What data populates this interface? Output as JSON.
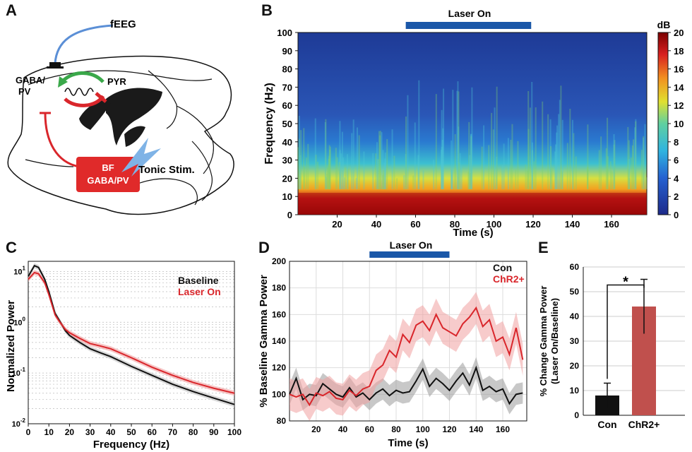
{
  "panels": {
    "A": {
      "label": "A",
      "feeg_label": "fEEG",
      "gaba_label": "GABA/",
      "pv_label": "PV",
      "pyr_label": "PYR",
      "box_line1": "BF",
      "box_line2": "GABA/PV",
      "stim_label": "Tonic Stim."
    },
    "B": {
      "label": "B"
    },
    "C": {
      "label": "C"
    },
    "D": {
      "label": "D"
    },
    "E": {
      "label": "E"
    }
  },
  "colors": {
    "laser_bar": "#1a57a8",
    "red": "#d9262b",
    "black": "#111111",
    "con_bar": "#111111",
    "chr2_bar": "#c0504d",
    "feeg_wire": "#5b8fd6",
    "green_arrow": "#3aa84a"
  },
  "chart_data": [
    {
      "id": "B",
      "type": "heatmap",
      "title": "Laser On",
      "xlabel": "Time (s)",
      "ylabel": "Frequency (Hz)",
      "xlim": [
        0,
        178
      ],
      "ylim": [
        0,
        100
      ],
      "xticks": [
        "20",
        "40",
        "60",
        "80",
        "100",
        "120",
        "140",
        "160"
      ],
      "yticks": [
        "0",
        "10",
        "20",
        "30",
        "40",
        "50",
        "60",
        "70",
        "80",
        "90",
        "100"
      ],
      "laser_on": [
        55,
        119
      ],
      "colorbar_label": "dB",
      "colorbar_ticks": [
        "0",
        "2",
        "4",
        "6",
        "8",
        "10",
        "12",
        "14",
        "16",
        "18",
        "20"
      ],
      "colorbar_range": [
        0,
        20
      ]
    },
    {
      "id": "C",
      "type": "line",
      "xlabel": "Frequency (Hz)",
      "ylabel": "Normalized Power",
      "yscale": "log",
      "xticks": [
        "0",
        "10",
        "20",
        "30",
        "40",
        "50",
        "60",
        "70",
        "80",
        "90",
        "100"
      ],
      "yticks": [
        "10^-2",
        "10^-1",
        "10^0",
        "10^1"
      ],
      "legend": [
        "Baseline",
        "Laser On"
      ],
      "series": [
        {
          "name": "Baseline",
          "x": [
            0,
            3,
            5,
            8,
            10,
            13,
            15,
            18,
            20,
            25,
            30,
            35,
            40,
            50,
            60,
            70,
            80,
            90,
            100
          ],
          "values": [
            8,
            13,
            12,
            7,
            4,
            1.5,
            1.1,
            0.68,
            0.55,
            0.4,
            0.3,
            0.25,
            0.21,
            0.135,
            0.09,
            0.06,
            0.043,
            0.032,
            0.024
          ]
        },
        {
          "name": "Laser On",
          "x": [
            0,
            3,
            5,
            8,
            10,
            13,
            15,
            18,
            20,
            25,
            30,
            35,
            40,
            50,
            60,
            70,
            80,
            90,
            100
          ],
          "values": [
            7,
            9.5,
            9,
            6,
            3.5,
            1.4,
            1.05,
            0.72,
            0.62,
            0.48,
            0.38,
            0.34,
            0.3,
            0.2,
            0.13,
            0.09,
            0.065,
            0.05,
            0.04
          ]
        }
      ]
    },
    {
      "id": "D",
      "type": "line",
      "title": "Laser On",
      "xlabel": "Time (s)",
      "ylabel": "% Baseline Gamma Power",
      "xlim": [
        0,
        178
      ],
      "ylim": [
        80,
        200
      ],
      "xticks": [
        "20",
        "40",
        "60",
        "80",
        "100",
        "120",
        "140",
        "160"
      ],
      "yticks": [
        "80",
        "100",
        "120",
        "140",
        "160",
        "180",
        "200"
      ],
      "laser_on": [
        60,
        120
      ],
      "legend": [
        "Con",
        "ChR2+"
      ],
      "series": [
        {
          "name": "Con",
          "x": [
            0,
            5,
            10,
            15,
            20,
            25,
            30,
            35,
            40,
            45,
            50,
            55,
            60,
            65,
            70,
            75,
            80,
            85,
            90,
            95,
            100,
            105,
            110,
            115,
            120,
            125,
            130,
            135,
            140,
            145,
            150,
            155,
            160,
            165,
            170,
            175
          ],
          "values": [
            100,
            112,
            96,
            100,
            99,
            108,
            104,
            100,
            98,
            105,
            98,
            101,
            96,
            101,
            104,
            99,
            103,
            101,
            102,
            110,
            119,
            106,
            112,
            108,
            103,
            110,
            116,
            107,
            120,
            103,
            106,
            102,
            104,
            93,
            100,
            101
          ]
        },
        {
          "name": "ChR2+",
          "x": [
            0,
            5,
            10,
            15,
            20,
            25,
            30,
            35,
            40,
            45,
            50,
            55,
            60,
            65,
            70,
            75,
            80,
            85,
            90,
            95,
            100,
            105,
            110,
            115,
            120,
            125,
            130,
            135,
            140,
            145,
            150,
            155,
            160,
            165,
            170,
            175
          ],
          "values": [
            100,
            98,
            100,
            92,
            101,
            99,
            102,
            97,
            96,
            103,
            99,
            104,
            106,
            118,
            122,
            133,
            128,
            145,
            139,
            152,
            155,
            148,
            160,
            150,
            147,
            144,
            153,
            158,
            165,
            151,
            156,
            140,
            143,
            130,
            150,
            126
          ]
        }
      ]
    },
    {
      "id": "E",
      "type": "bar",
      "ylabel": "% Change Gamma Power (Laser On/Baseline)",
      "ylim": [
        0,
        60
      ],
      "yticks": [
        "0",
        "10",
        "20",
        "30",
        "40",
        "50",
        "60"
      ],
      "categories": [
        "Con",
        "ChR2+"
      ],
      "values": [
        8,
        44
      ],
      "errors": [
        5,
        11
      ],
      "significance": "*"
    }
  ]
}
